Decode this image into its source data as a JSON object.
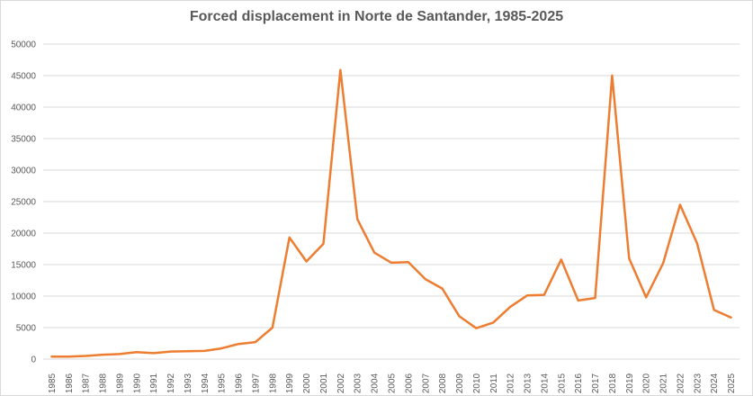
{
  "chart_data": {
    "type": "line",
    "title": "Forced displacement in Norte de Santander, 1985-2025",
    "xlabel": "",
    "ylabel": "",
    "ylim": [
      0,
      50000
    ],
    "yticks": [
      0,
      5000,
      10000,
      15000,
      20000,
      25000,
      30000,
      35000,
      40000,
      45000,
      50000
    ],
    "grid": "horizontal",
    "legend": "none",
    "line_color": "#ed7d31",
    "gridline_color": "#d9d9d9",
    "categories": [
      "1985",
      "1986",
      "1987",
      "1988",
      "1989",
      "1990",
      "1991",
      "1992",
      "1993",
      "1994",
      "1995",
      "1996",
      "1997",
      "1998",
      "1999",
      "2000",
      "2001",
      "2002",
      "2003",
      "2004",
      "2005",
      "2006",
      "2007",
      "2008",
      "2009",
      "2010",
      "2011",
      "2012",
      "2013",
      "2014",
      "2015",
      "2016",
      "2017",
      "2018",
      "2019",
      "2020",
      "2021",
      "2022",
      "2023",
      "2024",
      "2025"
    ],
    "series": [
      {
        "values": [
          400,
          400,
          500,
          700,
          800,
          1100,
          950,
          1200,
          1250,
          1300,
          1700,
          2400,
          2700,
          5000,
          19300,
          15500,
          18300,
          45900,
          22200,
          16900,
          15300,
          15400,
          12700,
          11200,
          6800,
          4900,
          5800,
          8300,
          10100,
          10200,
          15800,
          9300,
          9700,
          45000,
          16000,
          9800,
          15200,
          24500,
          18400,
          7800,
          6600
        ]
      }
    ]
  }
}
